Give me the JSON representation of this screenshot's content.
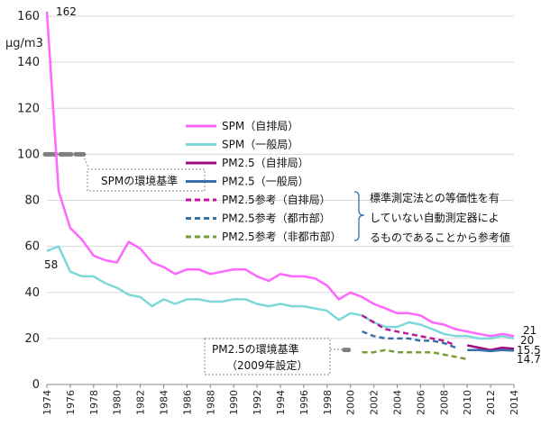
{
  "chart_data": {
    "type": "line",
    "ylabel": "μg/m3",
    "ylim": [
      0,
      160
    ],
    "yticks": [
      "0",
      "20",
      "40",
      "60",
      "80",
      "100",
      "120",
      "140",
      "160"
    ],
    "x": [
      "1974",
      "1975",
      "1976",
      "1977",
      "1978",
      "1979",
      "1980",
      "1981",
      "1982",
      "1983",
      "1984",
      "1985",
      "1986",
      "1987",
      "1988",
      "1989",
      "1990",
      "1991",
      "1992",
      "1993",
      "1994",
      "1995",
      "1996",
      "1997",
      "1998",
      "1999",
      "2000",
      "2001",
      "2002",
      "2003",
      "2004",
      "2005",
      "2006",
      "2007",
      "2008",
      "2009",
      "2010",
      "2011",
      "2012",
      "2013",
      "2014"
    ],
    "xticks": [
      "1974",
      "1976",
      "1978",
      "1980",
      "1982",
      "1984",
      "1986",
      "1988",
      "1990",
      "1992",
      "1994",
      "1996",
      "1998",
      "2000",
      "2002",
      "2004",
      "2006",
      "2008",
      "2010",
      "2012",
      "2014"
    ],
    "series": [
      {
        "name": "SPM（自排局）",
        "color": "#ff66ff",
        "style": "solid",
        "values": [
          162,
          84,
          68,
          63,
          56,
          54,
          53,
          62,
          59,
          53,
          51,
          48,
          50,
          50,
          48,
          49,
          50,
          50,
          47,
          45,
          48,
          47,
          47,
          46,
          43,
          37,
          40,
          38,
          35,
          33,
          31,
          31,
          30,
          27,
          26,
          24,
          23,
          22,
          21,
          22,
          21
        ]
      },
      {
        "name": "SPM（一般局）",
        "color": "#7fd8d8",
        "style": "solid",
        "values": [
          58,
          60,
          49,
          47,
          47,
          44,
          42,
          39,
          38,
          34,
          37,
          35,
          37,
          37,
          36,
          36,
          37,
          37,
          35,
          34,
          35,
          34,
          34,
          33,
          32,
          28,
          31,
          30,
          27,
          25,
          25,
          27,
          26,
          24,
          22,
          21,
          21,
          20,
          20,
          21,
          20
        ]
      },
      {
        "name": "PM2.5（自排局）",
        "color": "#a0087e",
        "style": "solid",
        "values": [
          null,
          null,
          null,
          null,
          null,
          null,
          null,
          null,
          null,
          null,
          null,
          null,
          null,
          null,
          null,
          null,
          null,
          null,
          null,
          null,
          null,
          null,
          null,
          null,
          null,
          null,
          null,
          null,
          null,
          null,
          null,
          null,
          null,
          null,
          null,
          null,
          17,
          16,
          15,
          16,
          15.5
        ]
      },
      {
        "name": "PM2.5（一般局）",
        "color": "#3a6ea8",
        "style": "solid",
        "values": [
          null,
          null,
          null,
          null,
          null,
          null,
          null,
          null,
          null,
          null,
          null,
          null,
          null,
          null,
          null,
          null,
          null,
          null,
          null,
          null,
          null,
          null,
          null,
          null,
          null,
          null,
          null,
          null,
          null,
          null,
          null,
          null,
          null,
          null,
          null,
          null,
          15,
          15,
          14.5,
          15,
          14.7
        ]
      },
      {
        "name": "PM2.5参考（自排局）",
        "color": "#c0189a",
        "style": "dashed",
        "values": [
          null,
          null,
          null,
          null,
          null,
          null,
          null,
          null,
          null,
          null,
          null,
          null,
          null,
          null,
          null,
          null,
          null,
          null,
          null,
          null,
          null,
          null,
          null,
          null,
          null,
          null,
          null,
          30,
          27,
          24,
          23,
          22,
          21,
          20,
          19,
          17,
          null,
          null,
          null,
          null,
          null
        ]
      },
      {
        "name": "PM2.5参考（都市部）",
        "color": "#3a6ea8",
        "style": "dashed",
        "values": [
          null,
          null,
          null,
          null,
          null,
          null,
          null,
          null,
          null,
          null,
          null,
          null,
          null,
          null,
          null,
          null,
          null,
          null,
          null,
          null,
          null,
          null,
          null,
          null,
          null,
          null,
          null,
          23,
          21,
          20,
          20,
          20,
          19,
          19,
          18,
          16,
          null,
          null,
          null,
          null,
          null
        ]
      },
      {
        "name": "PM2.5参考（非都市部）",
        "color": "#7a9a3a",
        "style": "dashed",
        "values": [
          null,
          null,
          null,
          null,
          null,
          null,
          null,
          null,
          null,
          null,
          null,
          null,
          null,
          null,
          null,
          null,
          null,
          null,
          null,
          null,
          null,
          null,
          null,
          null,
          null,
          null,
          null,
          14,
          14,
          15,
          14,
          14,
          14,
          14,
          13,
          12,
          11,
          null,
          null,
          null,
          null
        ]
      }
    ],
    "annotations": {
      "spm_start": "162",
      "spm_general_start": "58",
      "spm_end": "21",
      "spm_general_end": "20",
      "pm_auto_end": "15.5",
      "pm_general_end": "14.7",
      "spm_standard": "SPMの環境基準",
      "spm_standard_value": 100,
      "pm_standard_line1": "PM2.5の環境基準",
      "pm_standard_line2": "（2009年設定）",
      "pm_standard_value": 15,
      "note_line1": "標準測定法との等価性を有",
      "note_line2": "していない自動測定器によ",
      "note_line3": "るものであることから参考値"
    }
  }
}
